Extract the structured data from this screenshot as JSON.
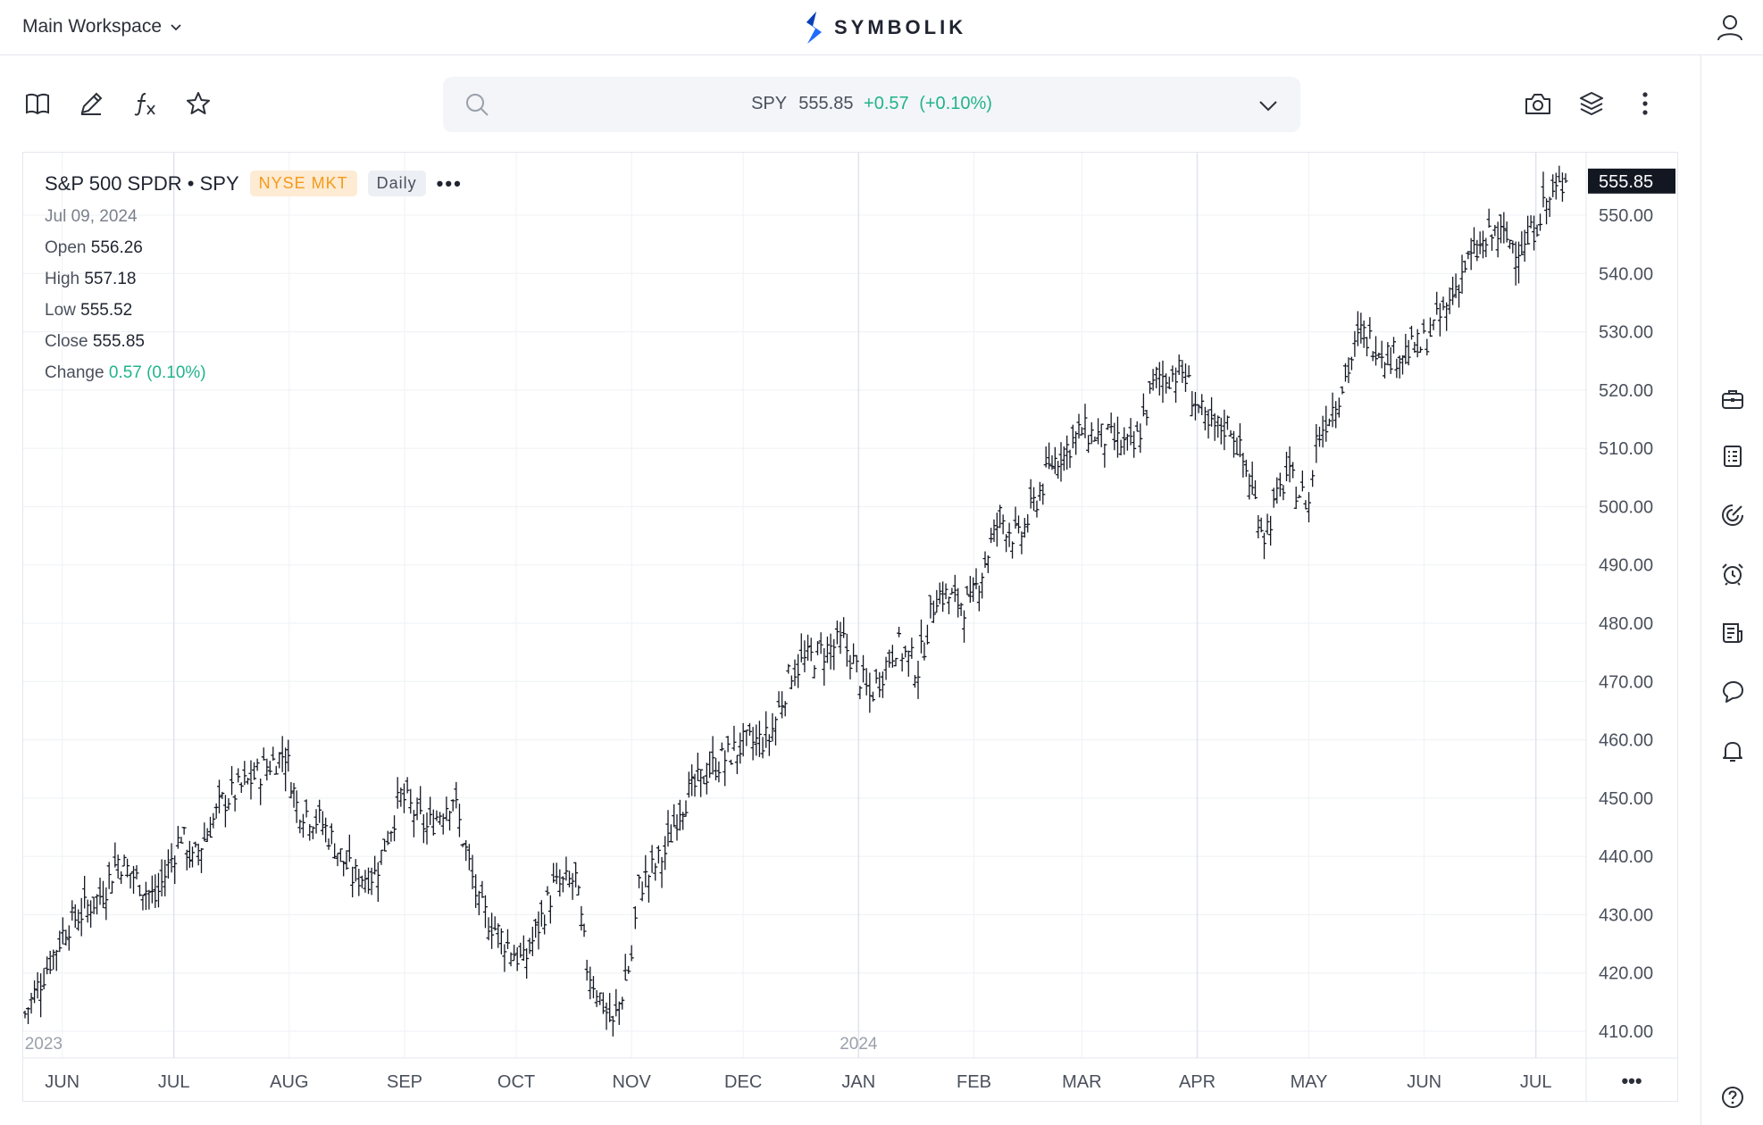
{
  "header": {
    "workspace_label": "Main Workspace",
    "brand_name": "SYMBOLIK"
  },
  "search": {
    "symbol": "SPY",
    "price": "555.85",
    "change": "+0.57",
    "change_pct": "(+0.10%)"
  },
  "chart_info": {
    "name": "S&P 500 SPDR • SPY",
    "exchange": "NYSE MKT",
    "interval": "Daily",
    "date": "Jul 09, 2024",
    "open_label": "Open",
    "open": "556.26",
    "high_label": "High",
    "high": "557.18",
    "low_label": "Low",
    "low": "555.52",
    "close_label": "Close",
    "close": "555.85",
    "change_label": "Change",
    "change": "0.57 (0.10%)"
  },
  "colors": {
    "accent": "#1f6bff",
    "positive": "#21b38c",
    "exchange_badge_text": "#f59a1b",
    "exchange_badge_bg": "#fdebd3",
    "price_tag_bg": "#131722",
    "bars": "#131722"
  },
  "icons": {
    "toolbar_left": [
      "book-icon",
      "pencil-icon",
      "fx-icon",
      "star-icon"
    ],
    "toolbar_right": [
      "camera-icon",
      "layers-icon",
      "more-vertical-icon"
    ],
    "right_sidebar": [
      "briefcase-icon",
      "watchlist-icon",
      "radar-icon",
      "alarm-icon",
      "news-icon",
      "chat-icon",
      "bell-icon",
      "help-icon"
    ]
  },
  "chart_data": {
    "type": "ohlc",
    "symbol": "SPY",
    "interval": "Daily",
    "price_axis": {
      "min": 410,
      "max": 560,
      "ticks": [
        "550.00",
        "540.00",
        "530.00",
        "520.00",
        "510.00",
        "500.00",
        "490.00",
        "480.00",
        "470.00",
        "460.00",
        "450.00",
        "440.00",
        "430.00",
        "420.00",
        "410.00"
      ]
    },
    "last_price_tag": "555.85",
    "time_axis": {
      "months": [
        "JUN",
        "JUL",
        "AUG",
        "SEP",
        "OCT",
        "NOV",
        "DEC",
        "JAN",
        "FEB",
        "MAR",
        "APR",
        "MAY",
        "JUN",
        "JUL"
      ],
      "years": [
        "2023",
        "2024"
      ],
      "more_label": "•••"
    },
    "series": [
      {
        "date": "2023-05-22",
        "close": 413.0
      },
      {
        "date": "2023-06-02",
        "close": 427.9
      },
      {
        "date": "2023-06-12",
        "close": 433.8
      },
      {
        "date": "2023-06-16",
        "close": 439.5
      },
      {
        "date": "2023-06-26",
        "close": 432.6
      },
      {
        "date": "2023-07-03",
        "close": 443.8
      },
      {
        "date": "2023-07-06",
        "close": 439.0
      },
      {
        "date": "2023-07-14",
        "close": 449.3
      },
      {
        "date": "2023-07-20",
        "close": 452.2
      },
      {
        "date": "2023-07-26",
        "close": 455.5
      },
      {
        "date": "2023-07-31",
        "close": 457.8
      },
      {
        "date": "2023-08-03",
        "close": 448.8
      },
      {
        "date": "2023-08-10",
        "close": 445.6
      },
      {
        "date": "2023-08-18",
        "close": 436.5
      },
      {
        "date": "2023-08-24",
        "close": 436.9
      },
      {
        "date": "2023-08-31",
        "close": 450.4
      },
      {
        "date": "2023-09-07",
        "close": 444.8
      },
      {
        "date": "2023-09-14",
        "close": 450.4
      },
      {
        "date": "2023-09-21",
        "close": 431.4
      },
      {
        "date": "2023-09-27",
        "close": 426.2
      },
      {
        "date": "2023-10-03",
        "close": 421.6
      },
      {
        "date": "2023-10-11",
        "close": 434.5
      },
      {
        "date": "2023-10-17",
        "close": 436.0
      },
      {
        "date": "2023-10-20",
        "close": 421.2
      },
      {
        "date": "2023-10-27",
        "close": 410.7
      },
      {
        "date": "2023-11-01",
        "close": 422.7
      },
      {
        "date": "2023-11-03",
        "close": 434.7
      },
      {
        "date": "2023-11-10",
        "close": 440.6
      },
      {
        "date": "2023-11-14",
        "close": 448.7
      },
      {
        "date": "2023-11-22",
        "close": 455.0
      },
      {
        "date": "2023-12-01",
        "close": 459.1
      },
      {
        "date": "2023-12-08",
        "close": 460.2
      },
      {
        "date": "2023-12-14",
        "close": 472.0
      },
      {
        "date": "2023-12-21",
        "close": 474.7
      },
      {
        "date": "2023-12-28",
        "close": 476.7
      },
      {
        "date": "2024-01-04",
        "close": 467.3
      },
      {
        "date": "2024-01-11",
        "close": 476.4
      },
      {
        "date": "2024-01-17",
        "close": 472.3
      },
      {
        "date": "2024-01-22",
        "close": 485.3
      },
      {
        "date": "2024-01-31",
        "close": 482.9
      },
      {
        "date": "2024-02-08",
        "close": 498.3
      },
      {
        "date": "2024-02-13",
        "close": 494.1
      },
      {
        "date": "2024-02-22",
        "close": 507.5
      },
      {
        "date": "2024-03-01",
        "close": 512.9
      },
      {
        "date": "2024-03-08",
        "close": 511.7
      },
      {
        "date": "2024-03-15",
        "close": 509.8
      },
      {
        "date": "2024-03-21",
        "close": 522.2
      },
      {
        "date": "2024-03-28",
        "close": 523.1
      },
      {
        "date": "2024-04-04",
        "close": 513.1
      },
      {
        "date": "2024-04-10",
        "close": 514.1
      },
      {
        "date": "2024-04-15",
        "close": 504.5
      },
      {
        "date": "2024-04-19",
        "close": 495.2
      },
      {
        "date": "2024-04-25",
        "close": 505.4
      },
      {
        "date": "2024-05-01",
        "close": 500.4
      },
      {
        "date": "2024-05-03",
        "close": 511.3
      },
      {
        "date": "2024-05-10",
        "close": 520.8
      },
      {
        "date": "2024-05-15",
        "close": 529.8
      },
      {
        "date": "2024-05-23",
        "close": 525.9
      },
      {
        "date": "2024-05-31",
        "close": 527.4
      },
      {
        "date": "2024-06-07",
        "close": 534.0
      },
      {
        "date": "2024-06-12",
        "close": 541.4
      },
      {
        "date": "2024-06-20",
        "close": 547.0
      },
      {
        "date": "2024-06-28",
        "close": 544.2
      },
      {
        "date": "2024-07-03",
        "close": 551.5
      },
      {
        "date": "2024-07-09",
        "close": 555.85
      }
    ]
  }
}
